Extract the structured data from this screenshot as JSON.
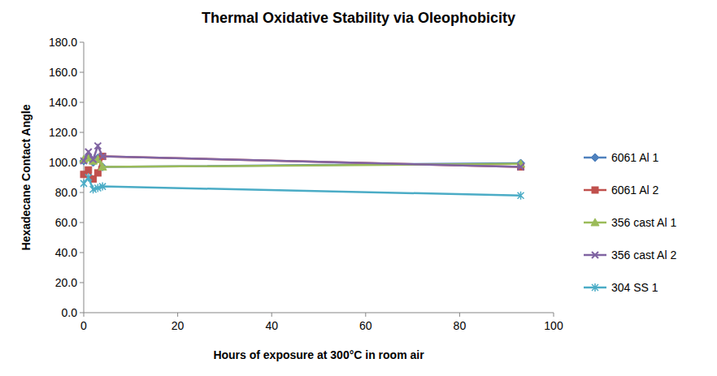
{
  "chart_data": {
    "type": "line",
    "title": "Thermal Oxidative Stability via Oleophobicity",
    "x_label": "Hours of exposure at 300°C in room air",
    "y_label": "Hexadecane Contact Angle",
    "x": [
      0,
      1,
      2,
      3,
      4,
      93
    ],
    "xlim": [
      0,
      100
    ],
    "xticks": [
      0,
      20,
      40,
      60,
      80,
      100
    ],
    "ylim": [
      0,
      180
    ],
    "yticks": [
      {
        "value": 0,
        "label": "0.0"
      },
      {
        "value": 20,
        "label": "20.0"
      },
      {
        "value": 40,
        "label": "40.0"
      },
      {
        "value": 60,
        "label": "60.0"
      },
      {
        "value": 80,
        "label": "80.0"
      },
      {
        "value": 100,
        "label": "100.0"
      },
      {
        "value": 120,
        "label": "120.0"
      },
      {
        "value": 140,
        "label": "140.0"
      },
      {
        "value": 160,
        "label": "160.0"
      },
      {
        "value": 180,
        "label": "180.0"
      }
    ],
    "grid": false,
    "legend": "right",
    "series": [
      {
        "name": "6061 Al 1",
        "color": "#4f81bd",
        "marker": "diamond",
        "values": [
          101,
          104,
          100,
          103,
          97,
          99.5
        ]
      },
      {
        "name": "6061 Al 2",
        "color": "#c0504d",
        "marker": "square",
        "values": [
          92,
          95,
          89,
          93,
          104,
          97
        ]
      },
      {
        "name": "356 cast Al 1",
        "color": "#9bbb59",
        "marker": "triangle",
        "values": [
          102,
          103,
          101,
          102,
          97,
          99
        ]
      },
      {
        "name": "356 cast Al 2",
        "color": "#8064a2",
        "marker": "x",
        "values": [
          101,
          107,
          102,
          111,
          104,
          97
        ]
      },
      {
        "name": "304 SS 1",
        "color": "#4bacc6",
        "marker": "star",
        "values": [
          86,
          90,
          82,
          83,
          84,
          78
        ]
      }
    ]
  }
}
